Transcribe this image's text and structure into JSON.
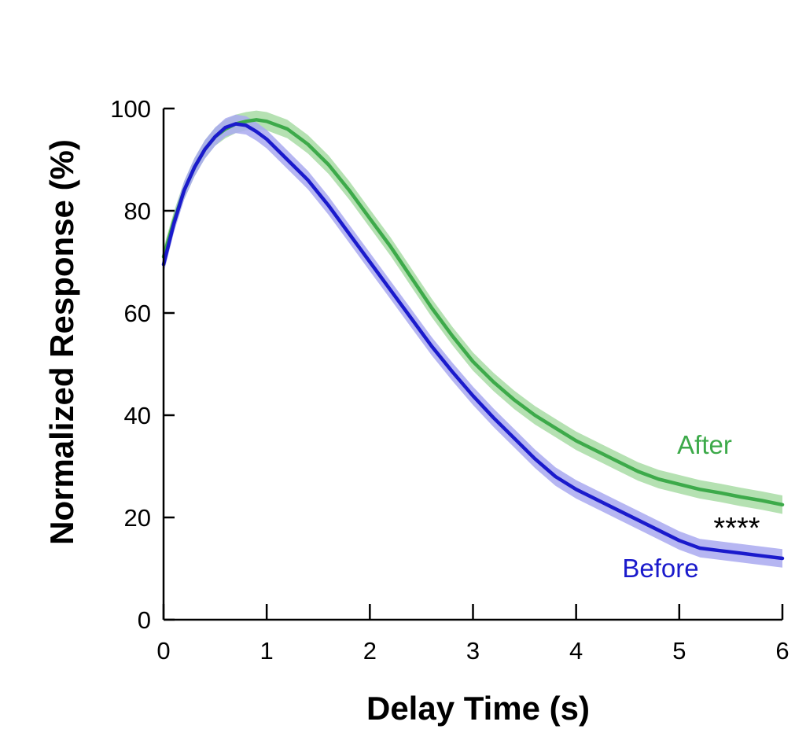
{
  "chart_data": {
    "type": "line",
    "title": "",
    "xlabel": "Delay Time (s)",
    "ylabel": "Normalized Response (%)",
    "xlim": [
      0,
      6
    ],
    "ylim": [
      0,
      100
    ],
    "xticks": [
      0,
      1,
      2,
      3,
      4,
      5,
      6
    ],
    "yticks": [
      0,
      20,
      40,
      60,
      80,
      100
    ],
    "xtick_labels": [
      "0",
      "1",
      "2",
      "3",
      "4",
      "5",
      "6"
    ],
    "ytick_labels": [
      "0",
      "20",
      "40",
      "60",
      "80",
      "100"
    ],
    "grid": false,
    "legend": "none",
    "annotation": "****",
    "series": [
      {
        "name": "After",
        "color": "#3daa4a",
        "band_color": "#a8dca4",
        "band_halfwidth": 1.8,
        "points": [
          [
            0.0,
            71.0
          ],
          [
            0.1,
            78.0
          ],
          [
            0.2,
            84.0
          ],
          [
            0.3,
            88.5
          ],
          [
            0.4,
            92.0
          ],
          [
            0.5,
            94.5
          ],
          [
            0.6,
            96.0
          ],
          [
            0.7,
            97.0
          ],
          [
            0.8,
            97.5
          ],
          [
            0.9,
            97.8
          ],
          [
            1.0,
            97.5
          ],
          [
            1.2,
            96.0
          ],
          [
            1.4,
            93.0
          ],
          [
            1.6,
            89.0
          ],
          [
            1.8,
            84.0
          ],
          [
            2.0,
            78.5
          ],
          [
            2.2,
            73.0
          ],
          [
            2.4,
            67.0
          ],
          [
            2.6,
            61.0
          ],
          [
            2.8,
            55.5
          ],
          [
            3.0,
            50.5
          ],
          [
            3.2,
            46.5
          ],
          [
            3.4,
            43.0
          ],
          [
            3.6,
            40.0
          ],
          [
            3.8,
            37.5
          ],
          [
            4.0,
            35.0
          ],
          [
            4.2,
            33.0
          ],
          [
            4.4,
            31.0
          ],
          [
            4.6,
            29.0
          ],
          [
            4.8,
            27.5
          ],
          [
            5.0,
            26.5
          ],
          [
            5.2,
            25.5
          ],
          [
            5.4,
            24.8
          ],
          [
            5.6,
            24.0
          ],
          [
            5.8,
            23.3
          ],
          [
            6.0,
            22.5
          ]
        ]
      },
      {
        "name": "Before",
        "color": "#1a1acc",
        "band_color": "#a9a9f0",
        "band_halfwidth": 1.8,
        "points": [
          [
            0.0,
            69.5
          ],
          [
            0.1,
            77.5
          ],
          [
            0.2,
            84.0
          ],
          [
            0.3,
            88.5
          ],
          [
            0.4,
            92.0
          ],
          [
            0.5,
            94.5
          ],
          [
            0.6,
            96.3
          ],
          [
            0.7,
            97.0
          ],
          [
            0.8,
            96.7
          ],
          [
            0.9,
            95.5
          ],
          [
            1.0,
            94.0
          ],
          [
            1.2,
            90.0
          ],
          [
            1.4,
            86.0
          ],
          [
            1.6,
            81.0
          ],
          [
            1.8,
            75.5
          ],
          [
            2.0,
            70.0
          ],
          [
            2.2,
            64.5
          ],
          [
            2.4,
            59.0
          ],
          [
            2.6,
            53.5
          ],
          [
            2.8,
            48.5
          ],
          [
            3.0,
            43.8
          ],
          [
            3.2,
            39.5
          ],
          [
            3.4,
            35.5
          ],
          [
            3.6,
            31.5
          ],
          [
            3.8,
            28.0
          ],
          [
            4.0,
            25.5
          ],
          [
            4.2,
            23.5
          ],
          [
            4.4,
            21.5
          ],
          [
            4.6,
            19.5
          ],
          [
            4.8,
            17.5
          ],
          [
            5.0,
            15.5
          ],
          [
            5.2,
            14.0
          ],
          [
            5.4,
            13.5
          ],
          [
            5.6,
            13.0
          ],
          [
            5.8,
            12.5
          ],
          [
            6.0,
            12.0
          ]
        ]
      }
    ]
  }
}
